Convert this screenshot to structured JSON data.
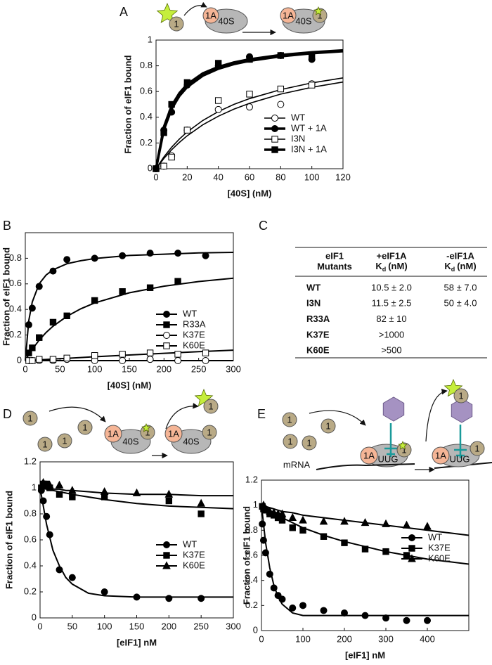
{
  "panels": [
    "A",
    "B",
    "C",
    "D",
    "E"
  ],
  "diagram_labels": {
    "A": [
      "1",
      "1A",
      "40S",
      "1A",
      "40S",
      "1"
    ],
    "D": [
      "1",
      "1",
      "1",
      "1",
      "1A",
      "40S",
      "1",
      "1",
      "1A",
      "40S",
      "1"
    ],
    "E": [
      "1",
      "1",
      "1",
      "1",
      "1A",
      "UUG",
      "1",
      "mRNA",
      "1A",
      "UUG",
      "1",
      "1"
    ]
  },
  "chart_data": [
    {
      "type": "scatter",
      "ylabel": "Fraction of eIF1 bound",
      "xlabel": "[40S] (nM)",
      "legend": "lower right",
      "xlim": [
        0,
        120
      ],
      "ylim": [
        0,
        1
      ],
      "xticks": [
        0,
        20,
        40,
        60,
        80,
        100,
        120
      ],
      "yticks": [
        0,
        0.2,
        0.4,
        0.6,
        0.8,
        1
      ],
      "x": [
        0,
        5,
        10,
        20,
        40,
        60,
        80,
        100
      ],
      "fit_x": [
        0,
        5,
        10,
        15,
        20,
        30,
        40,
        50,
        60,
        80,
        100,
        120
      ],
      "series": [
        {
          "name": "WT",
          "color": "#000000",
          "marker": "circle",
          "filled": false,
          "line_width": 1.6,
          "values": [
            0,
            0.02,
            0.1,
            0.3,
            0.46,
            0.48,
            0.5,
            0.66
          ],
          "fit": [
            0,
            0.079,
            0.147,
            0.205,
            0.256,
            0.341,
            0.408,
            0.463,
            0.508,
            0.58,
            0.633,
            0.674
          ]
        },
        {
          "name": "WT + 1A",
          "color": "#000000",
          "marker": "circle",
          "filled": true,
          "line_width": 3.5,
          "values": [
            0,
            0.3,
            0.44,
            0.65,
            0.8,
            0.87,
            0.88,
            0.85
          ],
          "fit": [
            0,
            0.323,
            0.488,
            0.588,
            0.656,
            0.741,
            0.792,
            0.826,
            0.851,
            0.884,
            0.905,
            0.92
          ]
        },
        {
          "name": "I3N",
          "color": "#000000",
          "marker": "square",
          "filled": false,
          "line_width": 1.6,
          "values": [
            0,
            0.02,
            0.09,
            0.3,
            0.53,
            0.58,
            0.62,
            0.65
          ],
          "fit": [
            0,
            0.091,
            0.167,
            0.231,
            0.286,
            0.375,
            0.444,
            0.5,
            0.545,
            0.615,
            0.667,
            0.706
          ]
        },
        {
          "name": "I3N + 1A",
          "color": "#000000",
          "marker": "square",
          "filled": true,
          "line_width": 3.5,
          "values": [
            0,
            0.28,
            0.5,
            0.67,
            0.82,
            0.85,
            0.88,
            0.88
          ],
          "fit": [
            0,
            0.303,
            0.465,
            0.566,
            0.635,
            0.723,
            0.777,
            0.813,
            0.839,
            0.874,
            0.897,
            0.913
          ]
        }
      ]
    },
    {
      "type": "scatter",
      "ylabel": "Fraction of eIF1 bound",
      "xlabel": "[40S] (nM)",
      "legend": "lower right",
      "xlim": [
        0,
        300
      ],
      "ylim": [
        0,
        1
      ],
      "xticks": [
        0,
        50,
        100,
        150,
        200,
        250,
        300
      ],
      "yticks": [
        0,
        0.2,
        0.4,
        0.6,
        0.8
      ],
      "x": [
        5,
        10,
        20,
        40,
        60,
        100,
        140,
        180,
        220,
        260
      ],
      "fit_x": [
        0,
        5,
        10,
        20,
        30,
        40,
        60,
        80,
        100,
        150,
        200,
        250,
        300
      ],
      "series": [
        {
          "name": "WT",
          "color": "#000000",
          "marker": "circle",
          "filled": true,
          "line_width": 2,
          "values": [
            0.28,
            0.41,
            0.58,
            0.7,
            0.79,
            0.8,
            0.82,
            0.84,
            0.84,
            0.82
          ],
          "fit": [
            0,
            0.311,
            0.458,
            0.6,
            0.669,
            0.71,
            0.757,
            0.781,
            0.798,
            0.822,
            0.832,
            0.842,
            0.846
          ]
        },
        {
          "name": "R33A",
          "color": "#000000",
          "marker": "square",
          "filled": true,
          "line_width": 2,
          "values": [
            0.06,
            0.1,
            0.18,
            0.3,
            0.35,
            0.47,
            0.54,
            0.57,
            0.62,
            null
          ],
          "fit": [
            0,
            0.047,
            0.089,
            0.16,
            0.22,
            0.269,
            0.346,
            0.405,
            0.451,
            0.53,
            0.582,
            0.618,
            0.644
          ]
        },
        {
          "name": "K37E",
          "color": "#000000",
          "marker": "circle",
          "filled": false,
          "line_width": 2,
          "values": [
            0,
            0,
            0,
            0,
            0.01,
            0,
            0,
            0.01,
            0,
            0
          ],
          "fit": [
            0,
            0,
            0,
            0,
            0,
            0,
            0,
            0,
            0,
            0,
            0,
            0,
            0
          ]
        },
        {
          "name": "K60E",
          "color": "#000000",
          "marker": "square",
          "filled": false,
          "line_width": 2,
          "values": [
            0,
            0,
            0.01,
            0.01,
            0.02,
            0.04,
            0.05,
            0.06,
            0.05,
            0.06
          ],
          "fit": [
            0,
            0.001,
            0.003,
            0.006,
            0.009,
            0.012,
            0.018,
            0.024,
            0.03,
            0.044,
            0.057,
            0.07,
            0.082
          ]
        }
      ]
    },
    {
      "type": "scatter",
      "ylabel": "Fraction of eIF1 bound",
      "xlabel": "[eIF1] nM",
      "legend": "lower right",
      "xlim": [
        0,
        300
      ],
      "ylim": [
        0,
        1.2
      ],
      "xticks": [
        0,
        50,
        100,
        150,
        200,
        250,
        300
      ],
      "yticks": [
        0,
        0.2,
        0.4,
        0.6,
        0.8,
        1,
        1.2
      ],
      "x": [
        2,
        5,
        10,
        15,
        30,
        50,
        100,
        150,
        200,
        250
      ],
      "fit_x": [
        0,
        10,
        20,
        30,
        40,
        50,
        75,
        100,
        150,
        200,
        250,
        300
      ],
      "series": [
        {
          "name": "WT",
          "color": "#000000",
          "marker": "circle",
          "filled": true,
          "line_width": 2,
          "values": [
            0.98,
            0.9,
            0.78,
            0.64,
            0.37,
            0.31,
            0.2,
            0.16,
            0.15,
            0.15
          ],
          "fit": [
            1,
            0.72,
            0.52,
            0.4,
            0.31,
            0.26,
            0.19,
            0.17,
            0.16,
            0.16,
            0.16,
            0.16
          ]
        },
        {
          "name": "K37E",
          "color": "#000000",
          "marker": "square",
          "filled": true,
          "line_width": 2,
          "values": [
            1,
            1.03,
            1.03,
            1,
            0.95,
            0.93,
            0.93,
            null,
            0.9,
            0.8
          ],
          "fit": [
            1,
            0.99,
            0.98,
            0.97,
            0.96,
            0.95,
            0.93,
            0.91,
            0.88,
            0.86,
            0.85,
            0.84
          ]
        },
        {
          "name": "K60E",
          "color": "#000000",
          "marker": "triangle",
          "filled": true,
          "line_width": 2,
          "values": [
            null,
            1.04,
            null,
            1.02,
            1.02,
            0.98,
            0.97,
            0.96,
            0.95,
            0.88
          ],
          "fit": [
            1,
            1,
            0.99,
            0.99,
            0.98,
            0.98,
            0.97,
            0.96,
            0.95,
            0.95,
            0.94,
            0.94
          ]
        }
      ]
    },
    {
      "type": "scatter",
      "ylabel": "Fraction of eIF1 bound",
      "xlabel": "[eIF1] nM",
      "legend": "lower right",
      "xlim": [
        0,
        500
      ],
      "ylim": [
        0,
        1.2
      ],
      "xticks": [
        0,
        100,
        200,
        300,
        400
      ],
      "yticks": [
        0,
        0.2,
        0.4,
        0.6,
        0.8,
        1,
        1.2
      ],
      "x": [
        2,
        5,
        10,
        20,
        30,
        40,
        50,
        75,
        100,
        150,
        200,
        250,
        300,
        350,
        400
      ],
      "fit_x": [
        0,
        10,
        20,
        30,
        40,
        50,
        75,
        100,
        150,
        200,
        300,
        400,
        450,
        500
      ],
      "series": [
        {
          "name": "WT",
          "color": "#000000",
          "marker": "circle",
          "filled": true,
          "line_width": 2,
          "values": [
            0.85,
            0.72,
            0.62,
            0.45,
            0.34,
            0.28,
            0.25,
            0.18,
            0.2,
            0.16,
            0.14,
            0.12,
            0.1,
            0.08,
            0.08
          ],
          "fit": [
            1,
            0.7,
            0.5,
            0.36,
            0.27,
            0.21,
            0.14,
            0.12,
            0.12,
            0.12,
            0.12,
            0.12,
            0.12,
            0.12
          ]
        },
        {
          "name": "K37E",
          "color": "#000000",
          "marker": "square",
          "filled": true,
          "line_width": 2,
          "values": [
            0.99,
            0.97,
            0.96,
            0.93,
            0.92,
            0.9,
            0.88,
            0.82,
            0.8,
            0.75,
            0.7,
            0.65,
            0.63,
            0.6,
            null
          ],
          "fit": [
            1,
            0.98,
            0.96,
            0.94,
            0.92,
            0.9,
            0.86,
            0.82,
            0.76,
            0.71,
            0.63,
            0.57,
            0.55,
            0.53
          ]
        },
        {
          "name": "K60E",
          "color": "#000000",
          "marker": "triangle",
          "filled": true,
          "line_width": 2,
          "values": [
            null,
            1,
            0.97,
            0.95,
            0.94,
            0.93,
            0.93,
            0.9,
            0.88,
            0.87,
            0.87,
            0.86,
            0.85,
            0.84,
            0.83
          ],
          "fit": [
            1,
            0.99,
            0.98,
            0.97,
            0.96,
            0.95,
            0.94,
            0.92,
            0.9,
            0.88,
            0.84,
            0.8,
            0.78,
            0.76
          ]
        }
      ]
    }
  ],
  "table": {
    "columns": [
      {
        "title": "eIF1",
        "title2": "Mutants"
      },
      {
        "title": "+eIF1A",
        "k": "K",
        "sub": "d",
        "unit": "(nM)"
      },
      {
        "title": "-eIF1A",
        "k": "K",
        "sub": "d",
        "unit": "(nM)"
      }
    ],
    "rows": [
      [
        "WT",
        "10.5 ± 2.0",
        "58 ± 7.0"
      ],
      [
        "I3N",
        "11.5 ± 2.5",
        "50 ± 4.0"
      ],
      [
        "R33A",
        "82 ± 10",
        null
      ],
      [
        "K37E",
        ">1000",
        null
      ],
      [
        "K60E",
        ">500",
        null
      ]
    ]
  }
}
